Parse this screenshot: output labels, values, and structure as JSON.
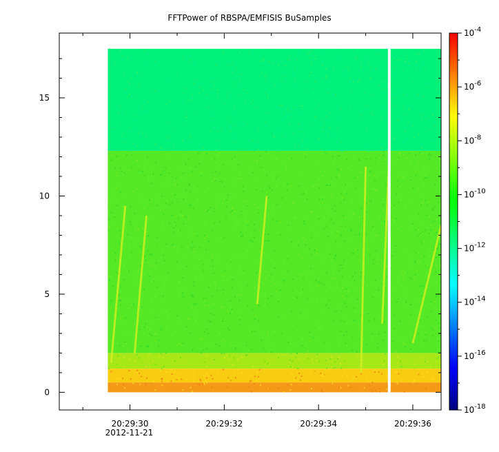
{
  "chart_data": {
    "type": "heatmap",
    "title": "FFTPower of RBSPA/EMFISIS  BuSamples",
    "xlabel": "",
    "ylabel": "",
    "x_axis": {
      "type": "time",
      "range": [
        "20:29:28.5",
        "20:29:36.6"
      ],
      "ticks": [
        {
          "value": "20:29:30",
          "label": "20:29:30",
          "sublabel": "2012-11-21"
        },
        {
          "value": "20:29:32",
          "label": "20:29:32",
          "sublabel": ""
        },
        {
          "value": "20:29:34",
          "label": "20:29:34",
          "sublabel": ""
        },
        {
          "value": "20:29:36",
          "label": "20:29:36",
          "sublabel": ""
        }
      ],
      "minor_ticks": [
        "20:29:29",
        "20:29:31",
        "20:29:33",
        "20:29:35"
      ]
    },
    "y_axis": {
      "range": [
        -0.9,
        18.3
      ],
      "ticks": [
        0,
        5,
        10,
        15
      ],
      "tick_labels": [
        "0",
        "5",
        "10",
        "15"
      ]
    },
    "colorbar": {
      "scale": "log",
      "range": [
        1e-18,
        0.0001
      ],
      "ticks": [
        {
          "base": "10",
          "exp": "-4"
        },
        {
          "base": "10",
          "exp": "-6"
        },
        {
          "base": "10",
          "exp": "-8"
        },
        {
          "base": "10",
          "exp": "-10"
        },
        {
          "base": "10",
          "exp": "-12"
        },
        {
          "base": "10",
          "exp": "-14"
        },
        {
          "base": "10",
          "exp": "-16"
        },
        {
          "base": "10",
          "exp": "-18"
        }
      ],
      "colors": [
        "#000080",
        "#0000ff",
        "#0080ff",
        "#00ffff",
        "#00ff80",
        "#00ff00",
        "#80ff00",
        "#ffff00",
        "#ff8000",
        "#ff0000"
      ]
    },
    "data_extent": {
      "x_start": "20:29:29.53",
      "x_end": "20:29:36.6",
      "y_start": 0,
      "y_end": 17.5,
      "gap_at": "20:29:35.5"
    },
    "bands": [
      {
        "y_from": 12.3,
        "y_to": 17.5,
        "log10_power": -12.0,
        "color": "#00f07a"
      },
      {
        "y_from": 2.0,
        "y_to": 12.3,
        "log10_power": -10.0,
        "color": "#55e825"
      },
      {
        "y_from": 1.2,
        "y_to": 2.0,
        "log10_power": -9.0,
        "color": "#a8e818"
      },
      {
        "y_from": 0.5,
        "y_to": 1.2,
        "log10_power": -8.0,
        "color": "#f8cc10"
      },
      {
        "y_from": 0.0,
        "y_to": 0.5,
        "log10_power": -7.0,
        "color": "#f59a18"
      }
    ],
    "features": [
      {
        "kind": "chorus streak",
        "x_from": "20:29:29.6",
        "x_to": "20:29:29.9",
        "y_from": 1.5,
        "y_to": 9.5
      },
      {
        "kind": "chorus streak",
        "x_from": "20:29:30.1",
        "x_to": "20:29:30.35",
        "y_from": 2,
        "y_to": 9.0
      },
      {
        "kind": "chorus streak",
        "x_from": "20:29:32.7",
        "x_to": "20:29:32.9",
        "y_from": 4.5,
        "y_to": 10.0
      },
      {
        "kind": "chorus streak",
        "x_from": "20:29:34.9",
        "x_to": "20:29:35.0",
        "y_from": 1,
        "y_to": 11.5
      },
      {
        "kind": "chorus streak",
        "x_from": "20:29:35.35",
        "x_to": "20:29:35.5",
        "y_from": 3.5,
        "y_to": 12
      },
      {
        "kind": "chorus streak",
        "x_from": "20:29:36.0",
        "x_to": "20:29:36.6",
        "y_from": 2.5,
        "y_to": 8.5
      }
    ]
  }
}
